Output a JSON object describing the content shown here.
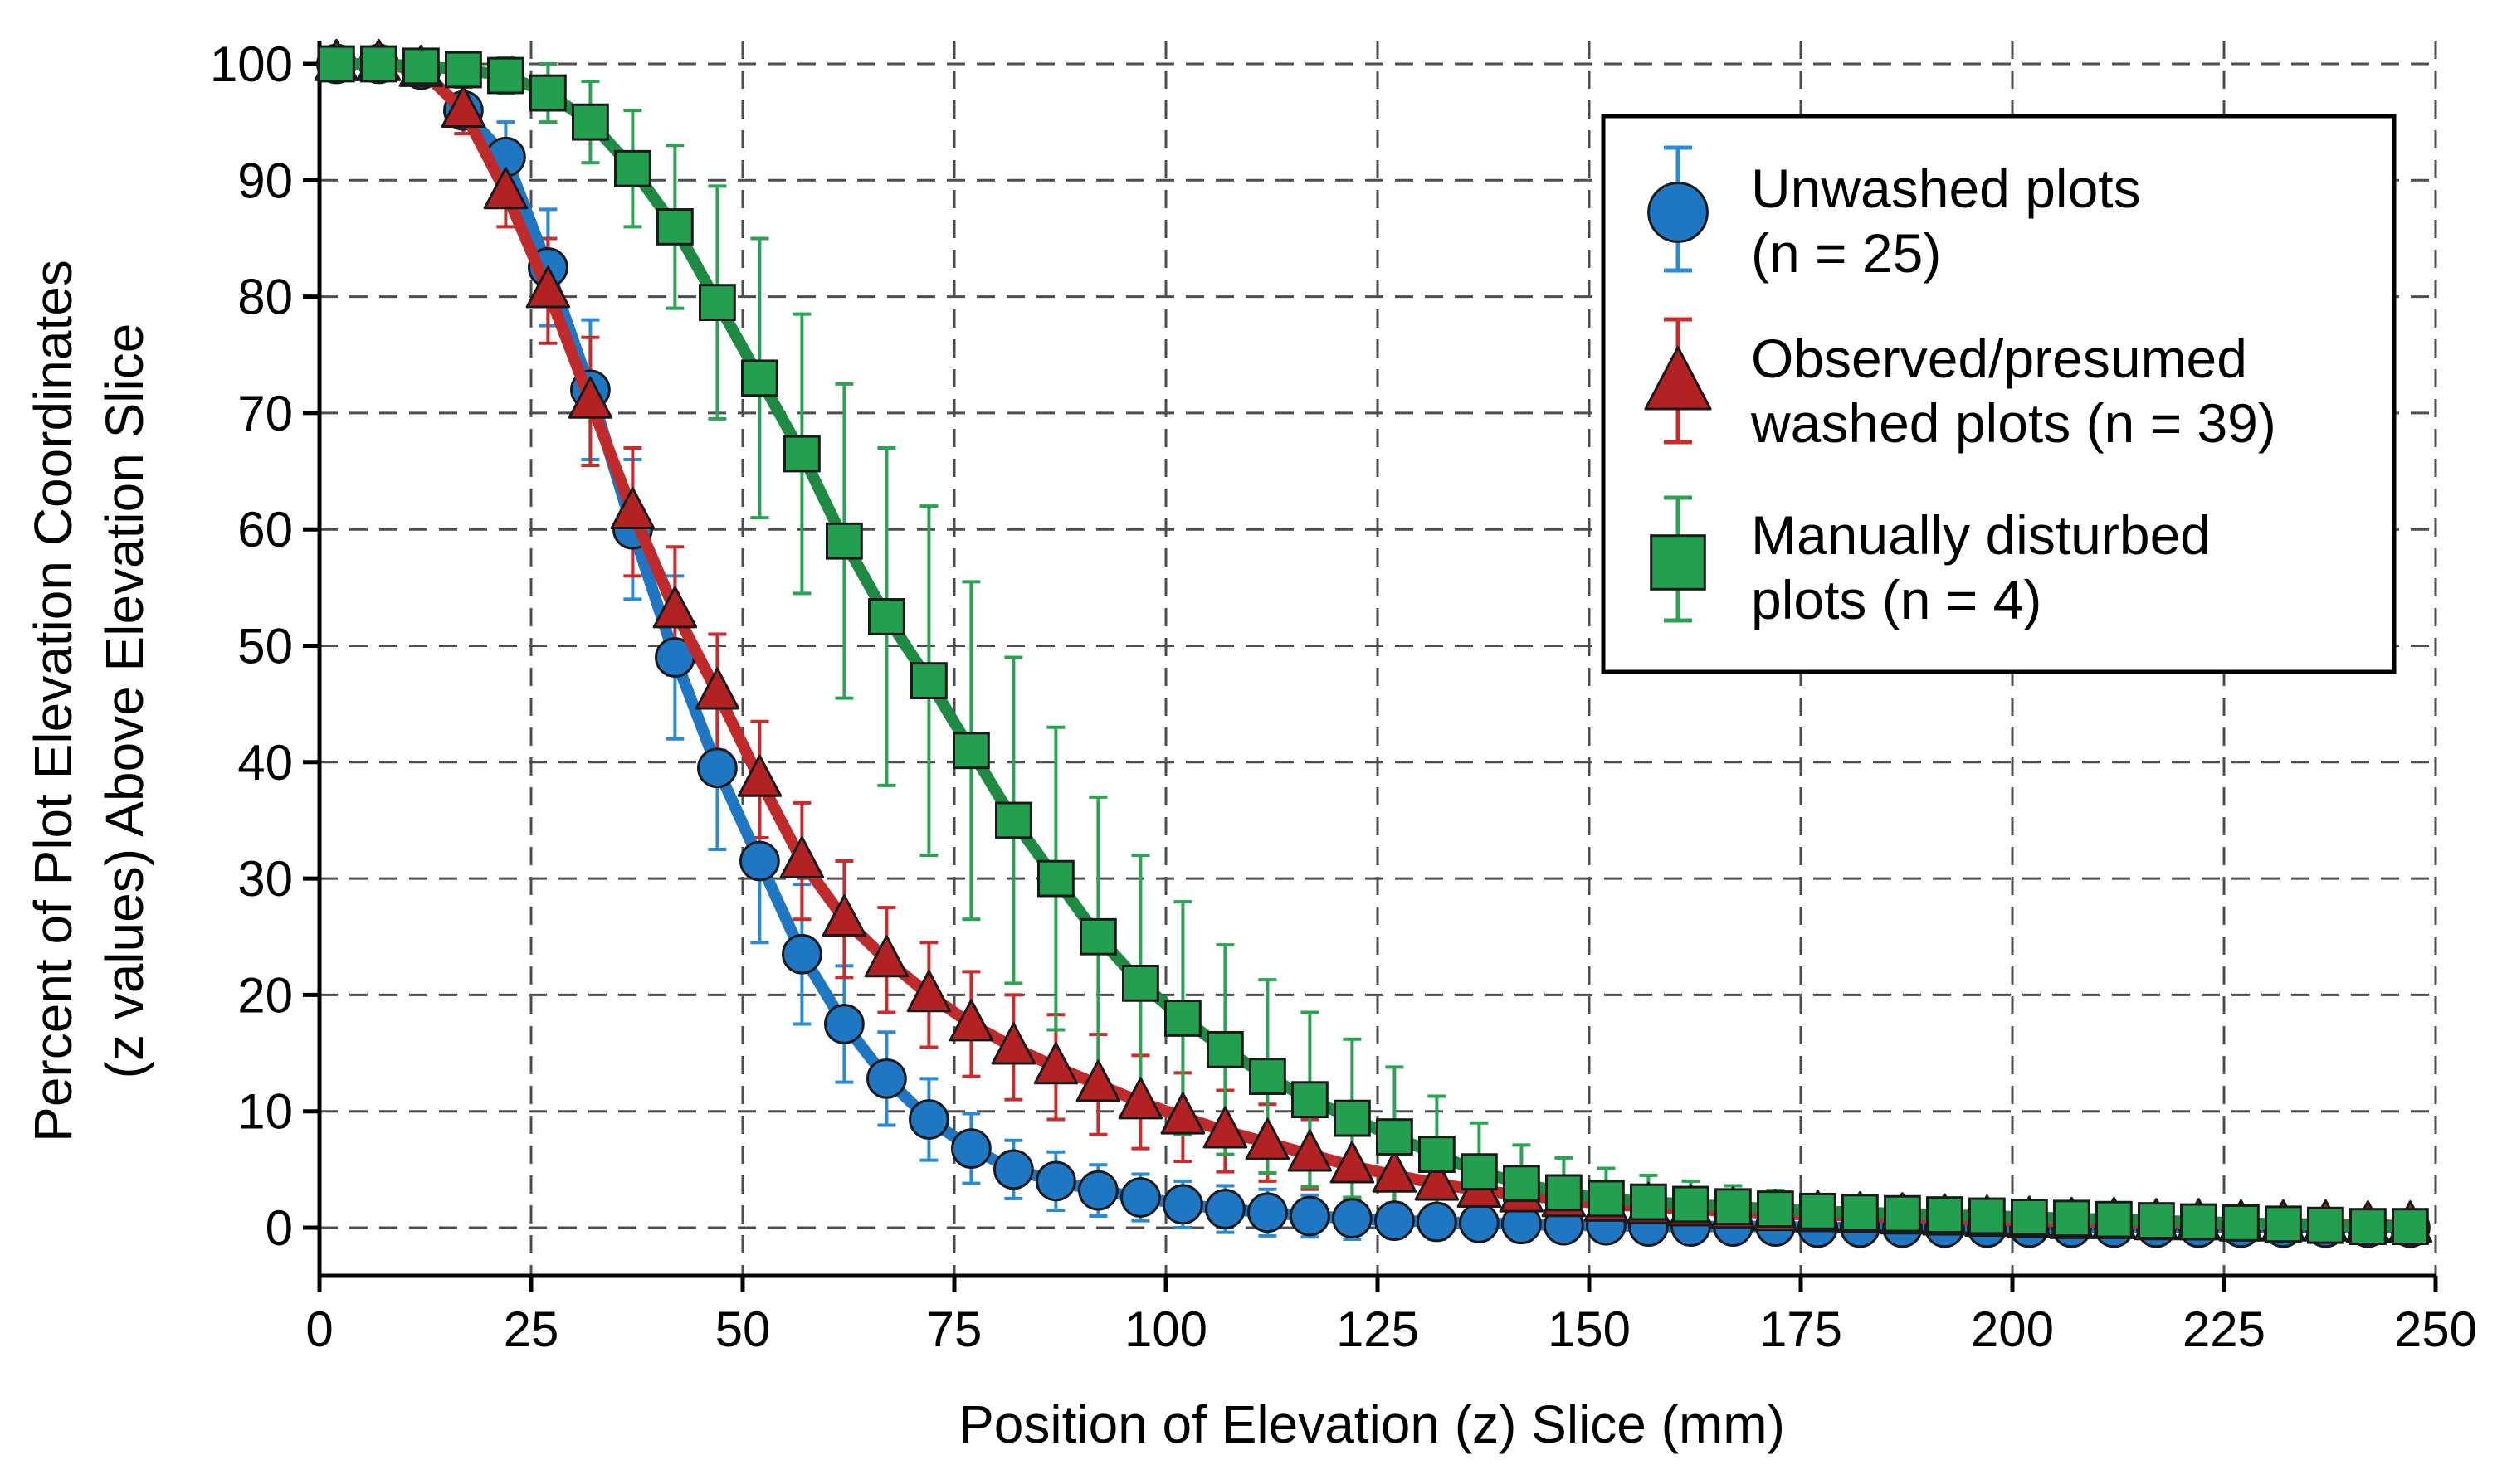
{
  "chart_data": {
    "type": "line",
    "title": "",
    "xlabel": "Position of Elevation (z) Slice (mm)",
    "ylabel_lines": [
      "Percent of Plot Elevation Coordinates",
      "(z values) Above Elevation Slice"
    ],
    "xlim": [
      0,
      250
    ],
    "ylim": [
      -4,
      102
    ],
    "xticks": [
      0,
      25,
      50,
      75,
      100,
      125,
      150,
      175,
      200,
      225,
      250
    ],
    "yticks": [
      0,
      10,
      20,
      30,
      40,
      50,
      60,
      70,
      80,
      90,
      100
    ],
    "grid": true,
    "legend_position": "top-right",
    "x": [
      2,
      7,
      12,
      17,
      22,
      27,
      32,
      37,
      42,
      47,
      52,
      57,
      62,
      67,
      72,
      77,
      82,
      87,
      92,
      97,
      102,
      107,
      112,
      117,
      122,
      127,
      132,
      137,
      142,
      147,
      152,
      157,
      162,
      167,
      172,
      177,
      182,
      187,
      192,
      197,
      202,
      207,
      212,
      217,
      222,
      227,
      232,
      237,
      242,
      247
    ],
    "series": [
      {
        "name": "Unwashed plots",
        "legend_lines": [
          "Unwashed plots",
          "(n = 25)"
        ],
        "marker": "circle",
        "color": "#1f77c4",
        "line_color": "#1f77c4",
        "fill": "#1f77c4",
        "errbar_color": "#2a8ad4",
        "values": [
          100,
          100,
          99.5,
          96,
          92,
          82.5,
          72,
          60,
          49,
          39.5,
          31.5,
          23.5,
          17.5,
          12.8,
          9.3,
          6.8,
          5,
          4,
          3.2,
          2.6,
          2,
          1.6,
          1.3,
          1,
          0.8,
          0.6,
          0.5,
          0.4,
          0.3,
          0.2,
          0.2,
          0.1,
          0.1,
          0.1,
          0.1,
          0,
          0,
          0,
          0,
          0,
          0,
          0,
          0,
          0,
          0,
          0,
          0,
          0,
          0,
          0
        ],
        "errors": [
          0.5,
          0.5,
          1,
          2,
          3,
          5,
          6,
          6,
          7,
          7,
          7,
          6,
          5,
          4,
          3.5,
          3,
          2.5,
          2.5,
          2.2,
          2,
          2,
          2,
          2,
          1.8,
          1.8,
          1.5,
          1.5,
          1.3,
          1.2,
          1,
          1,
          0.8,
          0.8,
          0.7,
          0.6,
          0.5,
          0.5,
          0.4,
          0.4,
          0.3,
          0.3,
          0.3,
          0.3,
          0.2,
          0.2,
          0.2,
          0.2,
          0.2,
          0.2,
          0.2
        ]
      },
      {
        "name": "Observed/presumed washed plots",
        "legend_lines": [
          "Observed/presumed",
          "washed plots (n = 39)"
        ],
        "marker": "triangle",
        "color": "#b22222",
        "line_color": "#c02a2a",
        "fill": "#b22222",
        "errbar_color": "#cc2b2b",
        "values": [
          100,
          100,
          99.5,
          96,
          89,
          80.5,
          71,
          61.5,
          53,
          46,
          38.5,
          31.5,
          26.5,
          23,
          20,
          17.5,
          15.5,
          13.8,
          12.3,
          10.8,
          9.5,
          8.3,
          7.3,
          6.3,
          5.3,
          4.5,
          3.8,
          3.2,
          2.8,
          2.4,
          2,
          1.8,
          1.6,
          1.4,
          1.2,
          1.1,
          1,
          0.9,
          0.8,
          0.7,
          0.6,
          0.5,
          0.5,
          0.4,
          0.4,
          0.3,
          0.3,
          0.3,
          0.2,
          0.2
        ],
        "errors": [
          0.5,
          0.5,
          1,
          2,
          3,
          4.5,
          5.5,
          5.5,
          5.5,
          5,
          5,
          5,
          5,
          4.5,
          4.5,
          4.5,
          4.5,
          4.5,
          4.3,
          4,
          3.8,
          3.5,
          3.3,
          3,
          2.8,
          2.6,
          2.4,
          2.2,
          2,
          1.8,
          1.6,
          1.5,
          1.4,
          1.3,
          1.2,
          1.1,
          1,
          0.9,
          0.8,
          0.7,
          0.7,
          0.6,
          0.6,
          0.5,
          0.5,
          0.5,
          0.5,
          0.5,
          0.5,
          0.5
        ]
      },
      {
        "name": "Manually disturbed plots",
        "legend_lines": [
          "Manually disturbed",
          "plots (n = 4)"
        ],
        "marker": "square",
        "color": "#1e9448",
        "line_color": "#1e8a44",
        "fill": "#23a04f",
        "errbar_color": "#2aa352",
        "values": [
          100,
          100,
          99.8,
          99.5,
          99,
          97.5,
          95,
          91,
          86,
          79.5,
          73,
          66.5,
          59,
          52.5,
          47,
          41,
          35,
          30,
          25,
          21,
          18,
          15.3,
          13,
          11,
          9.4,
          7.8,
          6.3,
          4.8,
          3.8,
          3,
          2.5,
          2.2,
          2,
          1.8,
          1.6,
          1.4,
          1.3,
          1.2,
          1.1,
          1,
          0.9,
          0.8,
          0.7,
          0.6,
          0.5,
          0.4,
          0.3,
          0.2,
          0.1,
          0.1
        ],
        "errors": [
          0.5,
          0.5,
          0.5,
          1,
          1.5,
          2.5,
          3.5,
          5,
          7,
          10,
          12,
          12,
          13.5,
          14.5,
          15,
          14.5,
          14,
          13,
          12,
          11,
          10,
          9,
          8.3,
          7.5,
          6.8,
          6,
          5,
          4.2,
          3.3,
          3,
          2.6,
          2.3,
          2,
          1.8,
          1.6,
          1.4,
          1.3,
          1.2,
          1.1,
          1,
          0.9,
          0.8,
          0.7,
          0.6,
          0.5,
          0.5,
          0.4,
          0.4,
          0.3,
          0.3
        ]
      }
    ]
  }
}
